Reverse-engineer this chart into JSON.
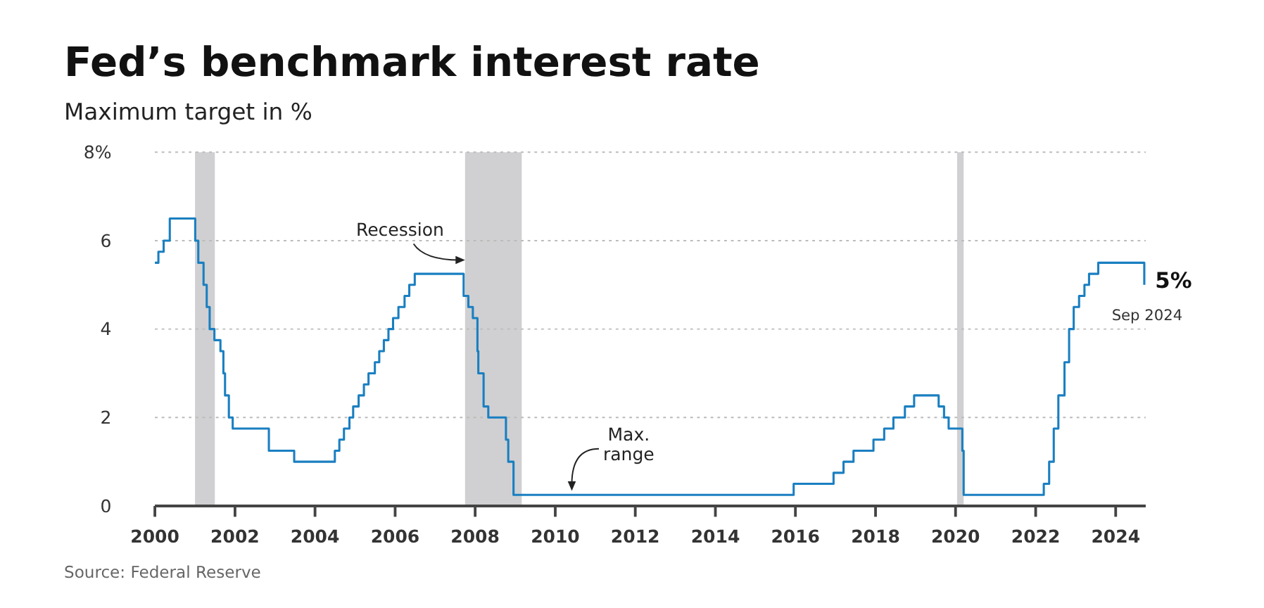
{
  "chart_data": {
    "type": "step",
    "title": "Fed’s benchmark interest rate",
    "subtitle": "Maximum target in %",
    "x": [
      "2000-01-01",
      "2000-02-02",
      "2000-03-21",
      "2000-05-16",
      "2001-01-03",
      "2001-01-31",
      "2001-03-20",
      "2001-04-18",
      "2001-05-15",
      "2001-06-27",
      "2001-08-21",
      "2001-09-17",
      "2001-10-02",
      "2001-11-06",
      "2001-12-11",
      "2002-11-06",
      "2003-06-25",
      "2004-06-30",
      "2004-08-10",
      "2004-09-21",
      "2004-11-10",
      "2004-12-14",
      "2005-02-02",
      "2005-03-22",
      "2005-05-03",
      "2005-06-30",
      "2005-08-09",
      "2005-09-20",
      "2005-11-01",
      "2005-12-13",
      "2006-01-31",
      "2006-03-28",
      "2006-05-10",
      "2006-06-29",
      "2007-09-18",
      "2007-10-31",
      "2007-12-11",
      "2008-01-22",
      "2008-01-30",
      "2008-03-18",
      "2008-04-30",
      "2008-10-08",
      "2008-10-29",
      "2008-12-16",
      "2015-12-16",
      "2016-12-14",
      "2017-03-15",
      "2017-06-14",
      "2017-12-13",
      "2018-03-21",
      "2018-06-13",
      "2018-09-26",
      "2018-12-19",
      "2019-07-31",
      "2019-09-18",
      "2019-10-30",
      "2020-03-03",
      "2020-03-15",
      "2022-03-16",
      "2022-05-04",
      "2022-06-15",
      "2022-07-27",
      "2022-09-21",
      "2022-11-02",
      "2022-12-14",
      "2023-02-01",
      "2023-03-22",
      "2023-05-03",
      "2023-07-26",
      "2024-09-18"
    ],
    "series": [
      {
        "color": "#1a7fc1",
        "values": [
          5.5,
          5.75,
          6,
          6.5,
          6,
          5.5,
          5,
          4.5,
          4,
          3.75,
          3.5,
          3,
          2.5,
          2,
          1.75,
          1.25,
          1,
          1.25,
          1.5,
          1.75,
          2,
          2.25,
          2.5,
          2.75,
          3,
          3.25,
          3.5,
          3.75,
          4,
          4.25,
          4.5,
          4.75,
          5,
          5.25,
          4.75,
          4.5,
          4.25,
          3.5,
          3,
          2.25,
          2,
          1.5,
          1,
          0.25,
          0.5,
          0.75,
          1,
          1.25,
          1.5,
          1.75,
          2,
          2.25,
          2.5,
          2.25,
          2,
          1.75,
          1.25,
          0.25,
          0.5,
          1,
          1.75,
          2.5,
          3.25,
          4,
          4.5,
          4.75,
          5,
          5.25,
          5.5,
          5
        ],
        "value_labels": [
          null,
          null,
          null,
          null,
          null,
          null,
          null,
          null,
          null,
          null,
          null,
          null,
          null,
          null,
          null,
          null,
          null,
          null,
          null,
          null,
          null,
          null,
          null,
          null,
          null,
          null,
          null,
          null,
          null,
          null,
          null,
          null,
          null,
          null,
          null,
          null,
          null,
          null,
          null,
          null,
          null,
          null,
          null,
          null,
          null,
          null,
          null,
          null,
          null,
          null,
          null,
          null,
          null,
          null,
          null,
          null,
          null,
          null,
          null,
          null,
          null,
          null,
          null,
          null,
          null,
          null,
          null,
          null,
          null,
          "5%"
        ]
      }
    ],
    "xlim": [
      "2000-01-01",
      "2024-10-01"
    ],
    "xticks": [
      {
        "value": "2000",
        "label": "2000"
      },
      {
        "value": "2002",
        "label": "2002"
      },
      {
        "value": "2004",
        "label": "2004"
      },
      {
        "value": "2006",
        "label": "2006"
      },
      {
        "value": "2008",
        "label": "2008"
      },
      {
        "value": "2010",
        "label": "2010"
      },
      {
        "value": "2012",
        "label": "2012"
      },
      {
        "value": "2014",
        "label": "2014"
      },
      {
        "value": "2016",
        "label": "2016"
      },
      {
        "value": "2018",
        "label": "2018"
      },
      {
        "value": "2020",
        "label": "2020"
      },
      {
        "value": "2022",
        "label": "2022"
      },
      {
        "value": "2024",
        "label": "2024"
      }
    ],
    "ylim": [
      0,
      8
    ],
    "yticks": [
      0,
      2,
      4,
      6,
      {
        "value": 8,
        "label": "8%"
      }
    ],
    "grid": "y",
    "bands": [
      {
        "axis": "x",
        "from": "2001-01-01",
        "to": "2001-07-01",
        "color": "#d0d0d2"
      },
      {
        "axis": "x",
        "from": "2007-10-01",
        "to": "2009-03-01",
        "color": "#d0d0d2"
      },
      {
        "axis": "x",
        "from": "2020-01-15",
        "to": "2020-03-15",
        "color": "#d0d0d2"
      }
    ],
    "annotations": [
      {
        "text": "Recession",
        "x": "2007-10-01",
        "y": 5.5
      },
      {
        "text": "Max. range",
        "x": "2010-06-01",
        "y": 0.25
      },
      {
        "text": "Sep 2024",
        "x": "2024-09-18",
        "y": 5
      },
      "Source: Federal Reserve"
    ]
  }
}
